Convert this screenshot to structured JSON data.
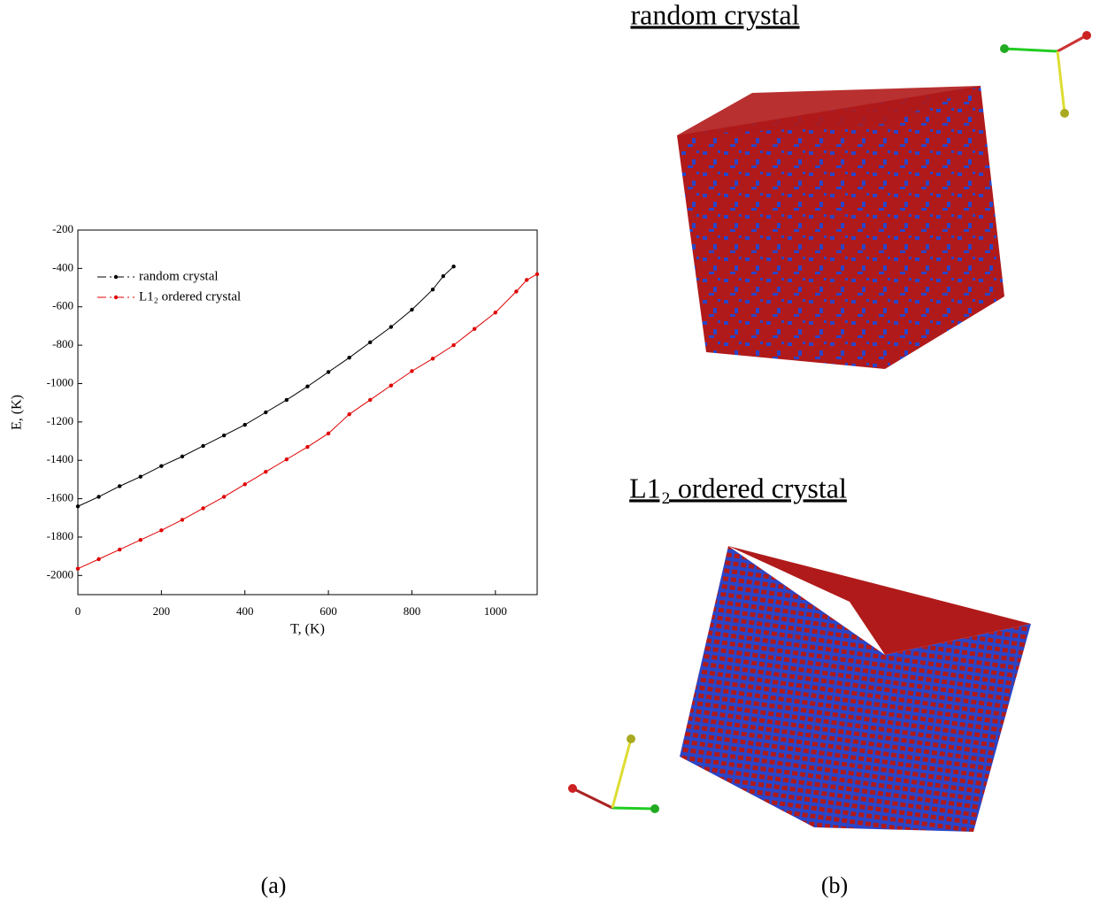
{
  "chart_data": {
    "type": "line",
    "xlabel": "T, (K)",
    "ylabel": "E, (K)",
    "xlim": [
      0,
      1100
    ],
    "ylim": [
      -2100,
      -200
    ],
    "xticks": [
      0,
      200,
      400,
      600,
      800,
      1000
    ],
    "yticks": [
      -200,
      -400,
      -600,
      -800,
      -1000,
      -1200,
      -1400,
      -1600,
      -1800,
      -2000
    ],
    "legend": "upper left",
    "series": [
      {
        "name": "random crystal",
        "color": "#000000",
        "x": [
          0,
          50,
          100,
          150,
          200,
          250,
          300,
          350,
          400,
          450,
          500,
          550,
          600,
          650,
          700,
          750,
          800,
          850,
          875,
          900
        ],
        "values": [
          -1640,
          -1590,
          -1535,
          -1485,
          -1430,
          -1380,
          -1325,
          -1270,
          -1215,
          -1150,
          -1085,
          -1015,
          -940,
          -865,
          -785,
          -705,
          -615,
          -510,
          -440,
          -390
        ]
      },
      {
        "name": "L1₂ ordered crystal",
        "color": "#e00000",
        "x": [
          0,
          50,
          100,
          150,
          200,
          250,
          300,
          350,
          400,
          450,
          500,
          550,
          600,
          650,
          700,
          750,
          800,
          850,
          900,
          950,
          1000,
          1050,
          1075,
          1100
        ],
        "values": [
          -1965,
          -1915,
          -1865,
          -1815,
          -1765,
          -1710,
          -1650,
          -1590,
          -1525,
          -1460,
          -1395,
          -1330,
          -1260,
          -1160,
          -1085,
          -1010,
          -935,
          -870,
          -800,
          -715,
          -630,
          -520,
          -460,
          -430
        ]
      }
    ]
  },
  "figure": {
    "caption_a": "(a)",
    "caption_b": "(b)",
    "panel_titles": [
      "random crystal",
      "L1₂ ordered crystal"
    ]
  }
}
